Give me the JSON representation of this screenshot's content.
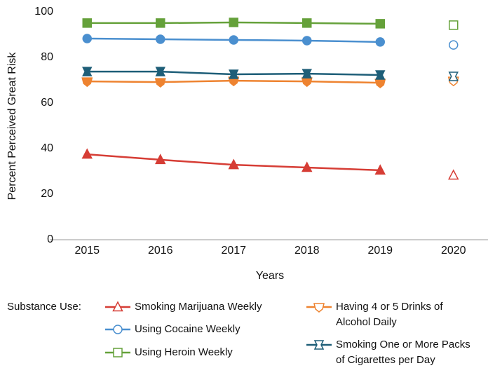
{
  "chart_data": {
    "type": "line",
    "y_label": "Percent Perceived Great Risk",
    "x_label": "Years",
    "legend_title": "Substance Use:",
    "categories": [
      "2015",
      "2016",
      "2017",
      "2018",
      "2019",
      "2020"
    ],
    "disconnected_from_index": 5,
    "ylim": [
      0,
      100
    ],
    "yticks": [
      0,
      20,
      40,
      60,
      80,
      100
    ],
    "series": [
      {
        "name": "Smoking Marijuana Weekly",
        "color": "#d63d35",
        "marker": "triangle",
        "values": [
          37.5,
          35.1,
          32.9,
          31.7,
          30.5,
          28.3
        ]
      },
      {
        "name": "Using Cocaine Weekly",
        "color": "#4a8fcf",
        "marker": "circle",
        "values": [
          88.3,
          88.0,
          87.7,
          87.4,
          86.8,
          85.5
        ]
      },
      {
        "name": "Using Heroin Weekly",
        "color": "#65a13a",
        "marker": "square",
        "values": [
          95.1,
          95.1,
          95.4,
          95.1,
          94.8,
          94.2
        ]
      },
      {
        "name": "Having 4 or 5 Drinks of Alcohol Daily",
        "color": "#ee8330",
        "marker": "pentagon",
        "values": [
          69.5,
          69.2,
          69.8,
          69.5,
          68.9,
          69.8
        ]
      },
      {
        "name": "Smoking One or More Packs of Cigarettes per Day",
        "color": "#1e5e78",
        "marker": "bowtie",
        "values": [
          73.8,
          73.8,
          72.6,
          72.9,
          72.3,
          71.7
        ]
      }
    ]
  }
}
